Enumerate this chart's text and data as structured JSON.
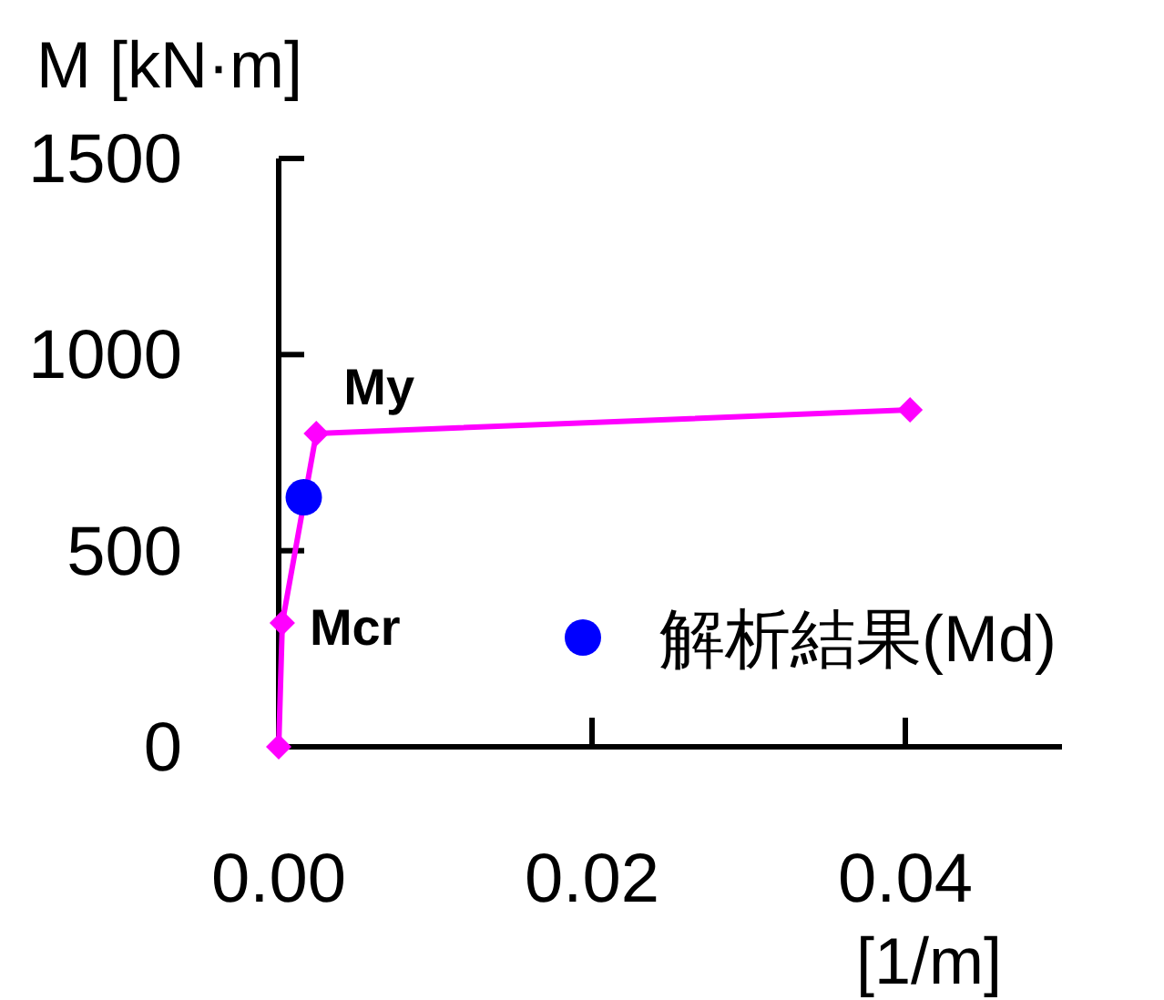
{
  "chart_data": {
    "type": "line",
    "xlabel": "[1/m]",
    "ylabel": "M [kN·m]",
    "xlim": [
      0,
      0.05
    ],
    "xticks": [
      {
        "value": 0,
        "label": "0.00"
      },
      {
        "value": 0.02,
        "label": "0.02"
      },
      {
        "value": 0.04,
        "label": "0.04"
      }
    ],
    "ylim": [
      0,
      1500
    ],
    "yticks": [
      0,
      500,
      1000,
      1500
    ],
    "grid": false,
    "legend": "bottom right",
    "series": [
      {
        "type": "line",
        "color": "#ff00ff",
        "marker": "diamond",
        "x": [
          0,
          0.00023,
          0.0024,
          0.0403
        ],
        "values": [
          0,
          316,
          799,
          859
        ]
      },
      {
        "type": "scatter",
        "name": "解析結果(Md)",
        "color": "#0000ff",
        "marker": "circle",
        "x": [
          0.0016
        ],
        "values": [
          636
        ]
      }
    ],
    "annotations": [
      {
        "text": "My",
        "x": 0.0024,
        "y": 799
      },
      {
        "text": "Mcr",
        "x": 0.00023,
        "y": 316
      }
    ]
  }
}
